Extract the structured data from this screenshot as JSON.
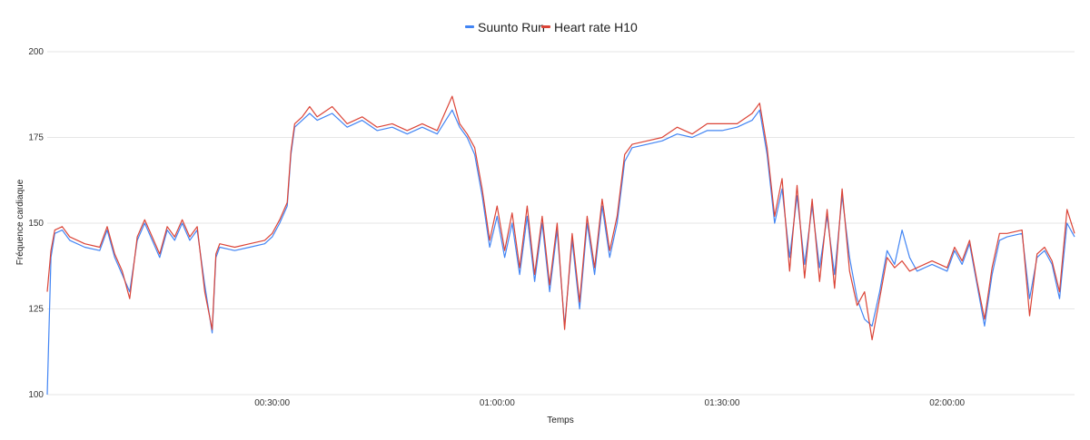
{
  "chart_data": {
    "type": "line",
    "title": "",
    "xlabel": "Temps",
    "ylabel": "Fréquence cardiaque",
    "ylim": [
      100,
      200
    ],
    "yticks": [
      100,
      125,
      150,
      175,
      200
    ],
    "xlim": [
      "00:00:00",
      "02:17:00"
    ],
    "xticks": [
      "00:30:00",
      "01:00:00",
      "01:30:00",
      "02:00:00"
    ],
    "grid": true,
    "legend_position": "top-center",
    "series": [
      {
        "name": "Suunto Run",
        "color": "#4285F4",
        "points": [
          [
            "00:00:00",
            100
          ],
          [
            "00:00:30",
            140
          ],
          [
            "00:01:00",
            147
          ],
          [
            "00:02:00",
            148
          ],
          [
            "00:03:00",
            145
          ],
          [
            "00:05:00",
            143
          ],
          [
            "00:07:00",
            142
          ],
          [
            "00:08:00",
            148
          ],
          [
            "00:09:00",
            140
          ],
          [
            "00:10:00",
            135
          ],
          [
            "00:11:00",
            130
          ],
          [
            "00:12:00",
            145
          ],
          [
            "00:13:00",
            150
          ],
          [
            "00:14:00",
            145
          ],
          [
            "00:15:00",
            140
          ],
          [
            "00:16:00",
            148
          ],
          [
            "00:17:00",
            145
          ],
          [
            "00:18:00",
            150
          ],
          [
            "00:19:00",
            145
          ],
          [
            "00:20:00",
            148
          ],
          [
            "00:21:00",
            132
          ],
          [
            "00:22:00",
            118
          ],
          [
            "00:22:30",
            140
          ],
          [
            "00:23:00",
            143
          ],
          [
            "00:25:00",
            142
          ],
          [
            "00:27:00",
            143
          ],
          [
            "00:29:00",
            144
          ],
          [
            "00:30:00",
            146
          ],
          [
            "00:31:00",
            150
          ],
          [
            "00:32:00",
            155
          ],
          [
            "00:32:30",
            170
          ],
          [
            "00:33:00",
            178
          ],
          [
            "00:34:00",
            180
          ],
          [
            "00:35:00",
            182
          ],
          [
            "00:36:00",
            180
          ],
          [
            "00:38:00",
            182
          ],
          [
            "00:40:00",
            178
          ],
          [
            "00:42:00",
            180
          ],
          [
            "00:44:00",
            177
          ],
          [
            "00:46:00",
            178
          ],
          [
            "00:48:00",
            176
          ],
          [
            "00:50:00",
            178
          ],
          [
            "00:52:00",
            176
          ],
          [
            "00:54:00",
            183
          ],
          [
            "00:55:00",
            178
          ],
          [
            "00:56:00",
            175
          ],
          [
            "00:57:00",
            170
          ],
          [
            "00:58:00",
            158
          ],
          [
            "00:59:00",
            143
          ],
          [
            "01:00:00",
            152
          ],
          [
            "01:01:00",
            140
          ],
          [
            "01:02:00",
            150
          ],
          [
            "01:03:00",
            135
          ],
          [
            "01:04:00",
            152
          ],
          [
            "01:05:00",
            133
          ],
          [
            "01:06:00",
            150
          ],
          [
            "01:07:00",
            130
          ],
          [
            "01:08:00",
            148
          ],
          [
            "01:09:00",
            120
          ],
          [
            "01:10:00",
            145
          ],
          [
            "01:11:00",
            125
          ],
          [
            "01:12:00",
            150
          ],
          [
            "01:13:00",
            135
          ],
          [
            "01:14:00",
            155
          ],
          [
            "01:15:00",
            140
          ],
          [
            "01:16:00",
            150
          ],
          [
            "01:17:00",
            168
          ],
          [
            "01:18:00",
            172
          ],
          [
            "01:20:00",
            173
          ],
          [
            "01:22:00",
            174
          ],
          [
            "01:24:00",
            176
          ],
          [
            "01:26:00",
            175
          ],
          [
            "01:28:00",
            177
          ],
          [
            "01:30:00",
            177
          ],
          [
            "01:32:00",
            178
          ],
          [
            "01:34:00",
            180
          ],
          [
            "01:35:00",
            183
          ],
          [
            "01:36:00",
            170
          ],
          [
            "01:37:00",
            150
          ],
          [
            "01:38:00",
            160
          ],
          [
            "01:39:00",
            140
          ],
          [
            "01:40:00",
            158
          ],
          [
            "01:41:00",
            138
          ],
          [
            "01:42:00",
            155
          ],
          [
            "01:43:00",
            137
          ],
          [
            "01:44:00",
            152
          ],
          [
            "01:45:00",
            135
          ],
          [
            "01:46:00",
            158
          ],
          [
            "01:47:00",
            140
          ],
          [
            "01:48:00",
            128
          ],
          [
            "01:49:00",
            122
          ],
          [
            "01:50:00",
            120
          ],
          [
            "01:51:00",
            130
          ],
          [
            "01:52:00",
            142
          ],
          [
            "01:53:00",
            138
          ],
          [
            "01:54:00",
            148
          ],
          [
            "01:55:00",
            140
          ],
          [
            "01:56:00",
            136
          ],
          [
            "01:58:00",
            138
          ],
          [
            "02:00:00",
            136
          ],
          [
            "02:01:00",
            142
          ],
          [
            "02:02:00",
            138
          ],
          [
            "02:03:00",
            144
          ],
          [
            "02:04:00",
            132
          ],
          [
            "02:05:00",
            120
          ],
          [
            "02:06:00",
            135
          ],
          [
            "02:07:00",
            145
          ],
          [
            "02:08:00",
            146
          ],
          [
            "02:10:00",
            147
          ],
          [
            "02:11:00",
            128
          ],
          [
            "02:12:00",
            140
          ],
          [
            "02:13:00",
            142
          ],
          [
            "02:14:00",
            138
          ],
          [
            "02:15:00",
            128
          ],
          [
            "02:16:00",
            150
          ],
          [
            "02:17:00",
            146
          ]
        ]
      },
      {
        "name": "Heart rate H10",
        "color": "#DB4437",
        "points": [
          [
            "00:00:00",
            130
          ],
          [
            "00:00:30",
            142
          ],
          [
            "00:01:00",
            148
          ],
          [
            "00:02:00",
            149
          ],
          [
            "00:03:00",
            146
          ],
          [
            "00:05:00",
            144
          ],
          [
            "00:07:00",
            143
          ],
          [
            "00:08:00",
            149
          ],
          [
            "00:09:00",
            141
          ],
          [
            "00:10:00",
            136
          ],
          [
            "00:11:00",
            128
          ],
          [
            "00:12:00",
            146
          ],
          [
            "00:13:00",
            151
          ],
          [
            "00:14:00",
            146
          ],
          [
            "00:15:00",
            141
          ],
          [
            "00:16:00",
            149
          ],
          [
            "00:17:00",
            146
          ],
          [
            "00:18:00",
            151
          ],
          [
            "00:19:00",
            146
          ],
          [
            "00:20:00",
            149
          ],
          [
            "00:21:00",
            130
          ],
          [
            "00:22:00",
            119
          ],
          [
            "00:22:30",
            141
          ],
          [
            "00:23:00",
            144
          ],
          [
            "00:25:00",
            143
          ],
          [
            "00:27:00",
            144
          ],
          [
            "00:29:00",
            145
          ],
          [
            "00:30:00",
            147
          ],
          [
            "00:31:00",
            151
          ],
          [
            "00:32:00",
            156
          ],
          [
            "00:32:30",
            171
          ],
          [
            "00:33:00",
            179
          ],
          [
            "00:34:00",
            181
          ],
          [
            "00:35:00",
            184
          ],
          [
            "00:36:00",
            181
          ],
          [
            "00:38:00",
            184
          ],
          [
            "00:40:00",
            179
          ],
          [
            "00:42:00",
            181
          ],
          [
            "00:44:00",
            178
          ],
          [
            "00:46:00",
            179
          ],
          [
            "00:48:00",
            177
          ],
          [
            "00:50:00",
            179
          ],
          [
            "00:52:00",
            177
          ],
          [
            "00:54:00",
            187
          ],
          [
            "00:55:00",
            179
          ],
          [
            "00:56:00",
            176
          ],
          [
            "00:57:00",
            172
          ],
          [
            "00:58:00",
            160
          ],
          [
            "00:59:00",
            145
          ],
          [
            "01:00:00",
            155
          ],
          [
            "01:01:00",
            142
          ],
          [
            "01:02:00",
            153
          ],
          [
            "01:03:00",
            137
          ],
          [
            "01:04:00",
            155
          ],
          [
            "01:05:00",
            135
          ],
          [
            "01:06:00",
            152
          ],
          [
            "01:07:00",
            132
          ],
          [
            "01:08:00",
            150
          ],
          [
            "01:09:00",
            119
          ],
          [
            "01:10:00",
            147
          ],
          [
            "01:11:00",
            127
          ],
          [
            "01:12:00",
            152
          ],
          [
            "01:13:00",
            137
          ],
          [
            "01:14:00",
            157
          ],
          [
            "01:15:00",
            142
          ],
          [
            "01:16:00",
            152
          ],
          [
            "01:17:00",
            170
          ],
          [
            "01:18:00",
            173
          ],
          [
            "01:20:00",
            174
          ],
          [
            "01:22:00",
            175
          ],
          [
            "01:24:00",
            178
          ],
          [
            "01:26:00",
            176
          ],
          [
            "01:28:00",
            179
          ],
          [
            "01:30:00",
            179
          ],
          [
            "01:32:00",
            179
          ],
          [
            "01:34:00",
            182
          ],
          [
            "01:35:00",
            185
          ],
          [
            "01:36:00",
            172
          ],
          [
            "01:37:00",
            152
          ],
          [
            "01:38:00",
            163
          ],
          [
            "01:39:00",
            136
          ],
          [
            "01:40:00",
            161
          ],
          [
            "01:41:00",
            134
          ],
          [
            "01:42:00",
            157
          ],
          [
            "01:43:00",
            133
          ],
          [
            "01:44:00",
            154
          ],
          [
            "01:45:00",
            131
          ],
          [
            "01:46:00",
            160
          ],
          [
            "01:47:00",
            136
          ],
          [
            "01:48:00",
            126
          ],
          [
            "01:49:00",
            130
          ],
          [
            "01:50:00",
            116
          ],
          [
            "01:51:00",
            128
          ],
          [
            "01:52:00",
            140
          ],
          [
            "01:53:00",
            137
          ],
          [
            "01:54:00",
            139
          ],
          [
            "01:55:00",
            136
          ],
          [
            "01:56:00",
            137
          ],
          [
            "01:58:00",
            139
          ],
          [
            "02:00:00",
            137
          ],
          [
            "02:01:00",
            143
          ],
          [
            "02:02:00",
            139
          ],
          [
            "02:03:00",
            145
          ],
          [
            "02:04:00",
            133
          ],
          [
            "02:05:00",
            122
          ],
          [
            "02:06:00",
            137
          ],
          [
            "02:07:00",
            147
          ],
          [
            "02:08:00",
            147
          ],
          [
            "02:10:00",
            148
          ],
          [
            "02:11:00",
            123
          ],
          [
            "02:12:00",
            141
          ],
          [
            "02:13:00",
            143
          ],
          [
            "02:14:00",
            139
          ],
          [
            "02:15:00",
            130
          ],
          [
            "02:16:00",
            154
          ],
          [
            "02:17:00",
            147
          ]
        ]
      }
    ]
  }
}
